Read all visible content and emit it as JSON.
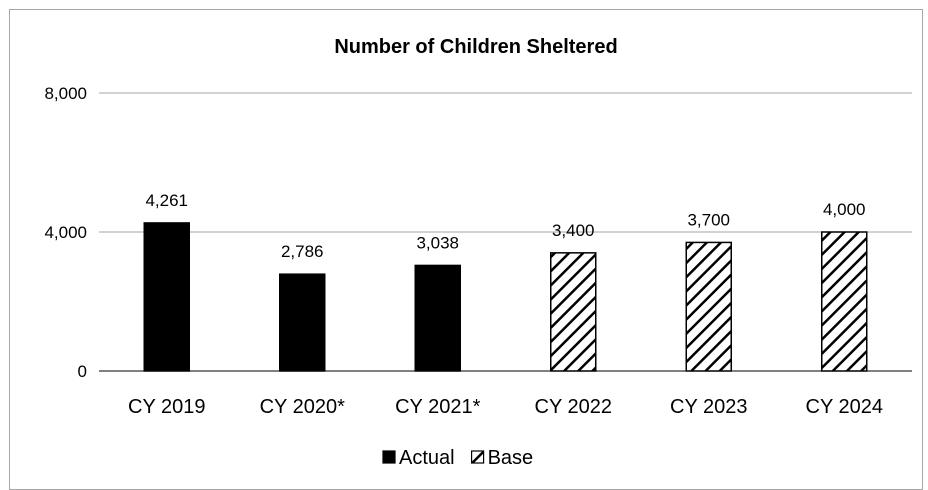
{
  "chart_data": {
    "type": "bar",
    "title": "Number of Children Sheltered",
    "categories": [
      "CY 2019",
      "CY 2020*",
      "CY 2021*",
      "CY 2022",
      "CY 2023",
      "CY 2024"
    ],
    "series": [
      {
        "name": "Actual",
        "values": [
          4261,
          2786,
          3038,
          null,
          null,
          null
        ],
        "style": "solid",
        "color": "#000000"
      },
      {
        "name": "Base",
        "values": [
          null,
          null,
          null,
          3400,
          3700,
          4000
        ],
        "style": "diagonal-hatch",
        "color": "#000000"
      }
    ],
    "data_labels": [
      "4,261",
      "2,786",
      "3,038",
      "3,400",
      "3,700",
      "4,000"
    ],
    "y_ticks": [
      "0",
      "4,000",
      "8,000"
    ],
    "ylim": [
      0,
      8000
    ],
    "grid": true,
    "legend_position": "bottom"
  }
}
